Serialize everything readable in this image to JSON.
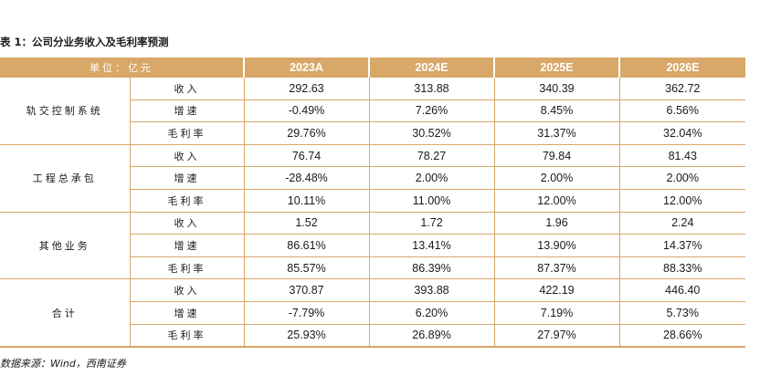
{
  "title": "表 1：公司分业务收入及毛利率预测",
  "header": {
    "unit": "单位：亿元",
    "years": [
      "2023A",
      "2024E",
      "2025E",
      "2026E"
    ]
  },
  "segments": [
    {
      "name": "轨交控制系统",
      "rows": [
        {
          "metric": "收入",
          "values": [
            "292.63",
            "313.88",
            "340.39",
            "362.72"
          ]
        },
        {
          "metric": "增速",
          "values": [
            "-0.49%",
            "7.26%",
            "8.45%",
            "6.56%"
          ]
        },
        {
          "metric": "毛利率",
          "values": [
            "29.76%",
            "30.52%",
            "31.37%",
            "32.04%"
          ]
        }
      ]
    },
    {
      "name": "工程总承包",
      "rows": [
        {
          "metric": "收入",
          "values": [
            "76.74",
            "78.27",
            "79.84",
            "81.43"
          ]
        },
        {
          "metric": "增速",
          "values": [
            "-28.48%",
            "2.00%",
            "2.00%",
            "2.00%"
          ]
        },
        {
          "metric": "毛利率",
          "values": [
            "10.11%",
            "11.00%",
            "12.00%",
            "12.00%"
          ]
        }
      ]
    },
    {
      "name": "其他业务",
      "rows": [
        {
          "metric": "收入",
          "values": [
            "1.52",
            "1.72",
            "1.96",
            "2.24"
          ]
        },
        {
          "metric": "增速",
          "values": [
            "86.61%",
            "13.41%",
            "13.90%",
            "14.37%"
          ]
        },
        {
          "metric": "毛利率",
          "values": [
            "85.57%",
            "86.39%",
            "87.37%",
            "88.33%"
          ]
        }
      ]
    },
    {
      "name": "合计",
      "rows": [
        {
          "metric": "收入",
          "values": [
            "370.87",
            "393.88",
            "422.19",
            "446.40"
          ]
        },
        {
          "metric": "增速",
          "values": [
            "-7.79%",
            "6.20%",
            "7.19%",
            "5.73%"
          ]
        },
        {
          "metric": "毛利率",
          "values": [
            "25.93%",
            "26.89%",
            "27.97%",
            "28.66%"
          ]
        }
      ]
    }
  ],
  "source": "数据来源：Wind，西南证券"
}
